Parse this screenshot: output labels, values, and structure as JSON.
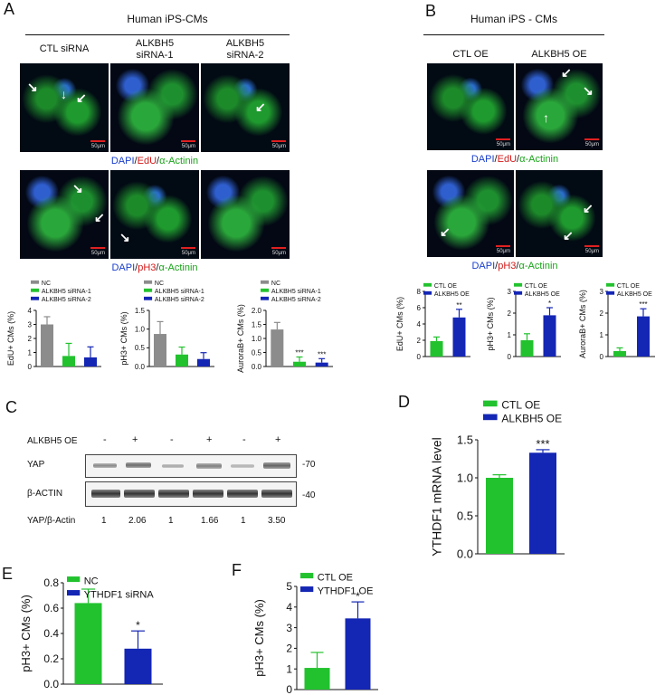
{
  "panels": {
    "A": {
      "label": "A",
      "title": "Human iPS-CMs",
      "columns": [
        "CTL siRNA",
        "ALKBH5\nsiRNA-1",
        "ALKBH5\nsiRNA-2"
      ],
      "scale": "50μm",
      "stain1": [
        "DAPI",
        "/",
        "EdU",
        "/",
        "α-Actinin"
      ],
      "stain2": [
        "DAPI",
        "/",
        "pH3",
        "/",
        "α-Actinin"
      ]
    },
    "B": {
      "label": "B",
      "title": "Human iPS - CMs",
      "columns": [
        "CTL OE",
        "ALKBH5 OE"
      ],
      "scale": "50μm",
      "stain1": [
        "DAPI",
        "/",
        "EdU",
        "/",
        "α-Actinin"
      ],
      "stain2": [
        "DAPI",
        "/",
        "pH3",
        "/",
        "α-Actinin"
      ]
    },
    "C": {
      "label": "C",
      "row_label": "ALKBH5 OE",
      "lanes": [
        "-",
        "+",
        "-",
        "+",
        "-",
        "+"
      ],
      "proteins": [
        "YAP",
        "β-ACTIN"
      ],
      "markers": [
        "-70",
        "-40"
      ],
      "ratio_label": "YAP/β-Actin",
      "ratios": [
        "1",
        "2.06",
        "1",
        "1.66",
        "1",
        "3.50"
      ]
    },
    "D": {
      "label": "D"
    },
    "E": {
      "label": "E"
    },
    "F": {
      "label": "F"
    }
  },
  "colors": {
    "gray": "#8c8c8c",
    "green": "#22c22e",
    "blue": "#1426b4"
  },
  "chart_data": [
    {
      "id": "A1",
      "type": "bar",
      "ylabel": "EdU+ CMs (%)",
      "ylim": [
        0,
        4
      ],
      "yticks": [
        0,
        1,
        2,
        3,
        4
      ],
      "legend": [
        "NC",
        "ALKBH5 siRNA-1",
        "ALKBH5 siRNA-2"
      ],
      "legend_colors": [
        "#8c8c8c",
        "#22c22e",
        "#1426b4"
      ],
      "series": [
        {
          "values": [
            3.0,
            0.75,
            0.65
          ],
          "errors": [
            0.55,
            0.9,
            0.75
          ],
          "colors": [
            "#8c8c8c",
            "#22c22e",
            "#1426b4"
          ]
        }
      ],
      "sig": [
        "",
        "",
        ""
      ]
    },
    {
      "id": "A2",
      "type": "bar",
      "ylabel": "pH3+ CMs (%)",
      "ylim": [
        0,
        1.5
      ],
      "yticks": [
        0.0,
        0.5,
        1.0,
        1.5
      ],
      "legend": [
        "NC",
        "ALKBH5 siRNA-1",
        "ALKBH5 siRNA-2"
      ],
      "legend_colors": [
        "#8c8c8c",
        "#22c22e",
        "#1426b4"
      ],
      "series": [
        {
          "values": [
            0.87,
            0.32,
            0.2
          ],
          "errors": [
            0.33,
            0.2,
            0.17
          ],
          "colors": [
            "#8c8c8c",
            "#22c22e",
            "#1426b4"
          ]
        }
      ],
      "sig": [
        "",
        "",
        ""
      ]
    },
    {
      "id": "A3",
      "type": "bar",
      "ylabel": "AuroraB+ CMs (%)",
      "ylim": [
        0,
        2.0
      ],
      "yticks": [
        0.0,
        0.5,
        1.0,
        1.5,
        2.0
      ],
      "legend": [
        "NC",
        "ALKBH5 siRNA-1",
        "ALKBH5 siRNA-2"
      ],
      "legend_colors": [
        "#8c8c8c",
        "#22c22e",
        "#1426b4"
      ],
      "series": [
        {
          "values": [
            1.32,
            0.17,
            0.14
          ],
          "errors": [
            0.25,
            0.17,
            0.14
          ],
          "colors": [
            "#8c8c8c",
            "#22c22e",
            "#1426b4"
          ]
        }
      ],
      "sig": [
        "",
        "***",
        "***"
      ]
    },
    {
      "id": "B1",
      "type": "bar",
      "ylabel": "EdU+ CMs (%)",
      "ylim": [
        0,
        8
      ],
      "yticks": [
        0,
        2,
        4,
        6,
        8
      ],
      "legend": [
        "CTL OE",
        "ALKBH5 OE"
      ],
      "legend_colors": [
        "#22c22e",
        "#1426b4"
      ],
      "series": [
        {
          "values": [
            1.9,
            4.8
          ],
          "errors": [
            0.5,
            1.0
          ],
          "colors": [
            "#22c22e",
            "#1426b4"
          ]
        }
      ],
      "sig": [
        "",
        "**"
      ]
    },
    {
      "id": "B2",
      "type": "bar",
      "ylabel": "pH3+ CMs (%)",
      "ylim": [
        0,
        3
      ],
      "yticks": [
        0,
        1,
        2,
        3
      ],
      "legend": [
        "CTL OE",
        "ALKBH5 OE"
      ],
      "legend_colors": [
        "#22c22e",
        "#1426b4"
      ],
      "series": [
        {
          "values": [
            0.75,
            1.9
          ],
          "errors": [
            0.3,
            0.35
          ],
          "colors": [
            "#22c22e",
            "#1426b4"
          ]
        }
      ],
      "sig": [
        "",
        "*"
      ]
    },
    {
      "id": "B3",
      "type": "bar",
      "ylabel": "AuroraB+ CMs (%)",
      "ylim": [
        0,
        3
      ],
      "yticks": [
        0,
        1,
        2,
        3
      ],
      "legend": [
        "CTL OE",
        "ALKBH5 OE"
      ],
      "legend_colors": [
        "#22c22e",
        "#1426b4"
      ],
      "series": [
        {
          "values": [
            0.25,
            1.85
          ],
          "errors": [
            0.15,
            0.35
          ],
          "colors": [
            "#22c22e",
            "#1426b4"
          ]
        }
      ],
      "sig": [
        "",
        "***"
      ]
    },
    {
      "id": "D",
      "type": "bar",
      "ylabel": "YTHDF1 mRNA level",
      "ylim": [
        0,
        1.5
      ],
      "yticks": [
        0.0,
        0.5,
        1.0,
        1.5
      ],
      "legend": [
        "CTL OE",
        "ALKBH5 OE"
      ],
      "legend_colors": [
        "#22c22e",
        "#1426b4"
      ],
      "series": [
        {
          "values": [
            1.0,
            1.33
          ],
          "errors": [
            0.04,
            0.04
          ],
          "colors": [
            "#22c22e",
            "#1426b4"
          ]
        }
      ],
      "sig": [
        "",
        "***"
      ]
    },
    {
      "id": "E",
      "type": "bar",
      "ylabel": "pH3+ CMs (%)",
      "ylim": [
        0,
        0.8
      ],
      "yticks": [
        0.0,
        0.2,
        0.4,
        0.6,
        0.8
      ],
      "legend": [
        "NC",
        "YTHDF1 siRNA"
      ],
      "legend_colors": [
        "#22c22e",
        "#1426b4"
      ],
      "series": [
        {
          "values": [
            0.64,
            0.28
          ],
          "errors": [
            0.11,
            0.14
          ],
          "colors": [
            "#22c22e",
            "#1426b4"
          ]
        }
      ],
      "sig": [
        "",
        "*"
      ]
    },
    {
      "id": "F",
      "type": "bar",
      "ylabel": "pH3+ CMs (%)",
      "ylim": [
        0,
        5
      ],
      "yticks": [
        0,
        1,
        2,
        3,
        4,
        5
      ],
      "legend": [
        "CTL OE",
        "YTHDF1 OE"
      ],
      "legend_colors": [
        "#22c22e",
        "#1426b4"
      ],
      "series": [
        {
          "values": [
            1.05,
            3.45
          ],
          "errors": [
            0.75,
            0.8
          ],
          "colors": [
            "#22c22e",
            "#1426b4"
          ]
        }
      ],
      "sig": [
        "",
        "*"
      ]
    }
  ]
}
